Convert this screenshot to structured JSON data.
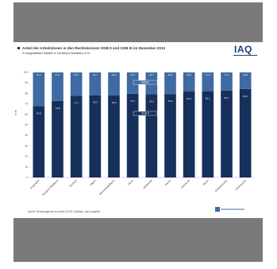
{
  "slide": {
    "title": "Anteil der Arbeitslosen in den Rechtskreisen SGB II und SGB III im Dezember 2013",
    "subtitle": "in ausgewählten Städten in Nordrhein-Westfalen in %",
    "logo_text": "IAQ",
    "source": "Quelle: Bundesagentur für Arbeit (2013); Statistik, nach Angaben",
    "ylabel": "in %"
  },
  "colors": {
    "sgb2": "#17305b",
    "sgb3": "#3f6aa3",
    "frame": "#7a7a7a",
    "text": "#1b2e55"
  },
  "chart_data": {
    "type": "bar",
    "stacked": true,
    "categories": [
      "Düsseldorf",
      "Bergisch Gladbach",
      "Bochum",
      "Hagen",
      "Mönchengladbach",
      "Herne",
      "Wuppertal",
      "Hamm",
      "Dortmund",
      "Essen",
      "Gelsenkirchen",
      "Oberhausen"
    ],
    "series": [
      {
        "name": "SGB II",
        "values": [
          67.9,
          72.8,
          77.7,
          78.3,
          78.0,
          79.7,
          79.3,
          79.4,
          81.8,
          82.1,
          82.7,
          84.2
        ]
      },
      {
        "name": "SGB III",
        "values": [
          32.1,
          27.2,
          22.3,
          21.7,
          22.0,
          20.3,
          20.7,
          20.6,
          18.2,
          17.9,
          17.3,
          15.8
        ]
      }
    ],
    "ylim": [
      0,
      100
    ],
    "yticks": [
      0,
      10,
      20,
      30,
      40,
      50,
      60,
      70,
      80,
      90,
      100
    ],
    "legend": [
      "SGB III",
      "SGB II"
    ],
    "legend_position": "center"
  }
}
